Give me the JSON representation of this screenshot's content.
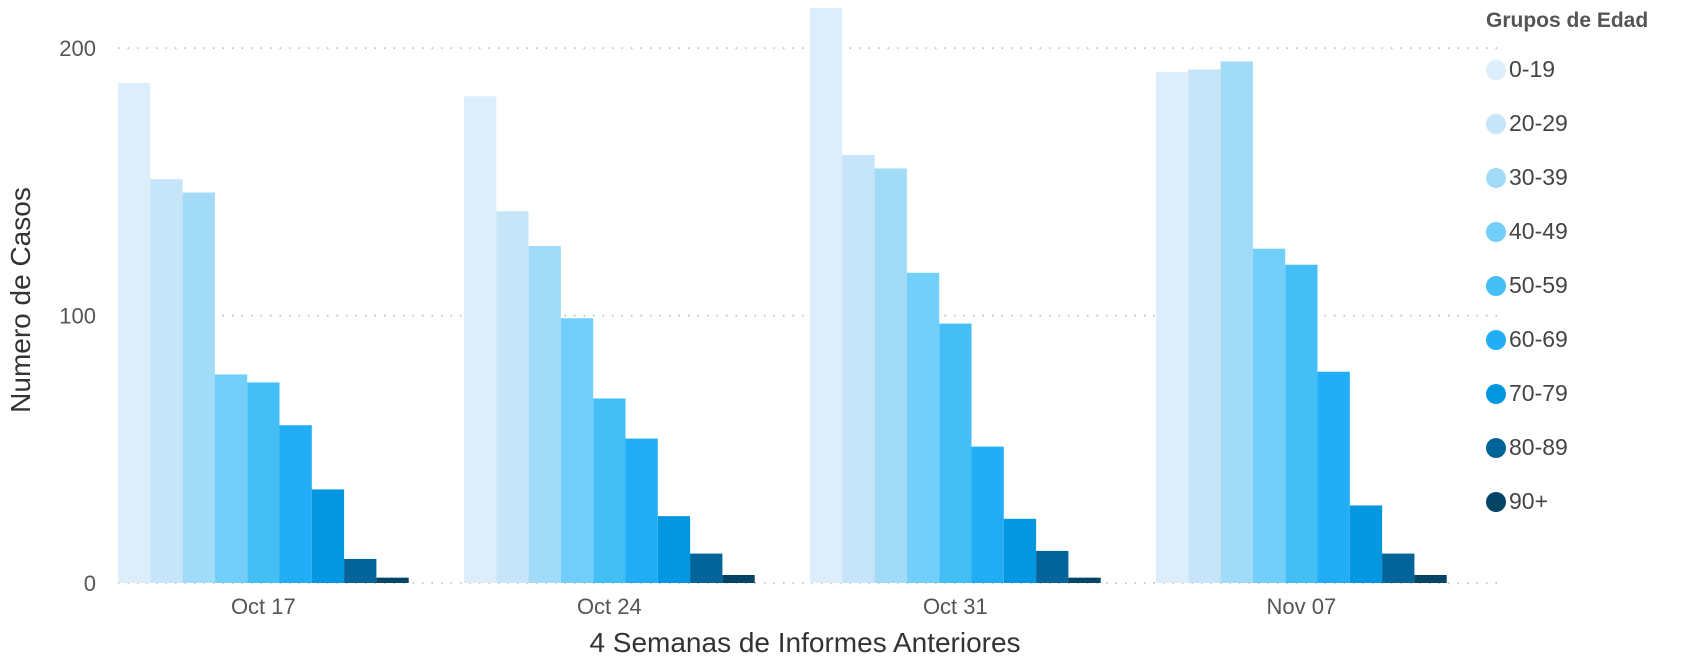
{
  "chart_data": {
    "type": "bar",
    "xlabel": "4 Semanas de Informes Anteriores",
    "ylabel": "Numero de Casos",
    "categories": [
      "Oct 17",
      "Oct 24",
      "Oct 31",
      "Nov 07"
    ],
    "ylim": [
      0,
      215
    ],
    "yticks": [
      0,
      100,
      200
    ],
    "grid": true,
    "legend_title": "Grupos de Edad",
    "legend_position": "top-right",
    "series": [
      {
        "name": "0-19",
        "color": "#DCEEFB",
        "values": [
          187,
          182,
          215,
          191
        ]
      },
      {
        "name": "20-29",
        "color": "#C6E5F8",
        "values": [
          151,
          139,
          160,
          192
        ]
      },
      {
        "name": "30-39",
        "color": "#A2DBF8",
        "values": [
          146,
          126,
          155,
          195
        ]
      },
      {
        "name": "40-49",
        "color": "#72CEFB",
        "values": [
          78,
          99,
          116,
          125
        ]
      },
      {
        "name": "50-59",
        "color": "#44BFF5",
        "values": [
          75,
          69,
          97,
          119
        ]
      },
      {
        "name": "60-69",
        "color": "#22AEF6",
        "values": [
          59,
          54,
          51,
          79
        ]
      },
      {
        "name": "70-79",
        "color": "#0497E1",
        "values": [
          35,
          25,
          24,
          29
        ]
      },
      {
        "name": "80-89",
        "color": "#03649A",
        "values": [
          9,
          11,
          12,
          11
        ]
      },
      {
        "name": "90+",
        "color": "#044565",
        "values": [
          2,
          3,
          2,
          3
        ]
      }
    ]
  }
}
